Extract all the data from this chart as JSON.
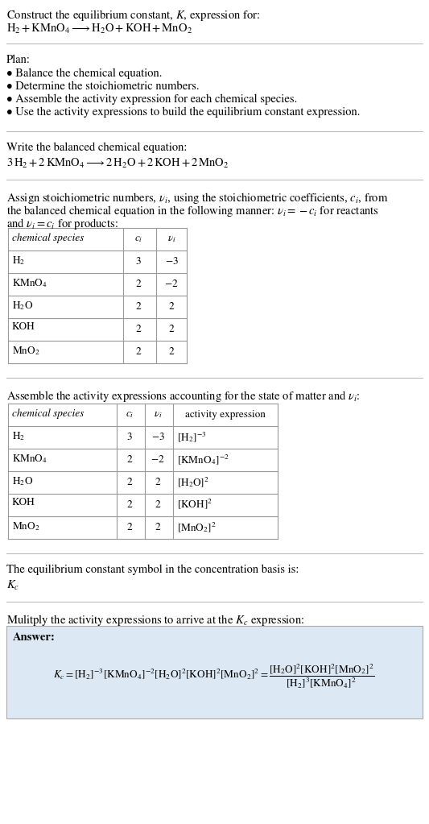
{
  "title_line1": "Construct the equilibrium constant, $K$, expression for:",
  "title_line2": "$\\mathrm{H_2 + KMnO_4 \\longrightarrow H_2O + KOH + MnO_2}$",
  "plan_header": "Plan:",
  "plan_items": [
    "• Balance the chemical equation.",
    "• Determine the stoichiometric numbers.",
    "• Assemble the activity expression for each chemical species.",
    "• Use the activity expressions to build the equilibrium constant expression."
  ],
  "balanced_header": "Write the balanced chemical equation:",
  "balanced_eq": "$3\\,\\mathrm{H_2} + 2\\,\\mathrm{KMnO_4} \\longrightarrow 2\\,\\mathrm{H_2O} + 2\\,\\mathrm{KOH} + 2\\,\\mathrm{MnO_2}$",
  "stoich_text1": "Assign stoichiometric numbers, $\\nu_i$, using the stoichiometric coefficients, $c_i$, from",
  "stoich_text2": "the balanced chemical equation in the following manner: $\\nu_i = -c_i$ for reactants",
  "stoich_text3": "and $\\nu_i = c_i$ for products:",
  "table1_headers": [
    "chemical species",
    "$c_i$",
    "$\\nu_i$"
  ],
  "table1_rows": [
    [
      "$\\mathrm{H_2}$",
      "3",
      "$-3$"
    ],
    [
      "$\\mathrm{KMnO_4}$",
      "2",
      "$-2$"
    ],
    [
      "$\\mathrm{H_2O}$",
      "2",
      "2"
    ],
    [
      "KOH",
      "2",
      "2"
    ],
    [
      "$\\mathrm{MnO_2}$",
      "2",
      "2"
    ]
  ],
  "activity_header": "Assemble the activity expressions accounting for the state of matter and $\\nu_i$:",
  "table2_headers": [
    "chemical species",
    "$c_i$",
    "$\\nu_i$",
    "activity expression"
  ],
  "table2_rows": [
    [
      "$\\mathrm{H_2}$",
      "3",
      "$-3$",
      "$[\\mathrm{H_2}]^{-3}$"
    ],
    [
      "$\\mathrm{KMnO_4}$",
      "2",
      "$-2$",
      "$[\\mathrm{KMnO_4}]^{-2}$"
    ],
    [
      "$\\mathrm{H_2O}$",
      "2",
      "2",
      "$[\\mathrm{H_2O}]^{2}$"
    ],
    [
      "KOH",
      "2",
      "2",
      "$[\\mathrm{KOH}]^{2}$"
    ],
    [
      "$\\mathrm{MnO_2}$",
      "2",
      "2",
      "$[\\mathrm{MnO_2}]^{2}$"
    ]
  ],
  "kc_text": "The equilibrium constant symbol in the concentration basis is:",
  "kc_symbol": "$K_c$",
  "multiply_text": "Mulitply the activity expressions to arrive at the $K_c$ expression:",
  "answer_box_color": "#dce9f5",
  "answer_label": "Answer:",
  "bg_color": "#ffffff",
  "text_color": "#000000",
  "table_border_color": "#999999",
  "font_size": 10.5,
  "small_font": 9.5
}
